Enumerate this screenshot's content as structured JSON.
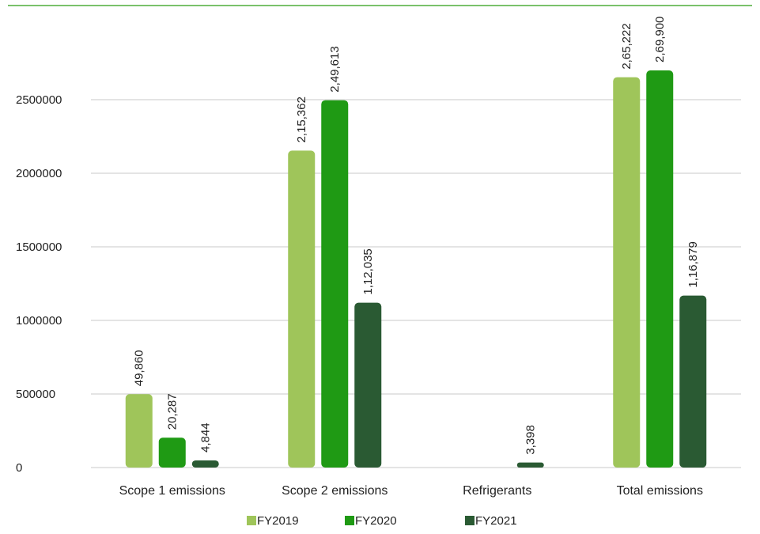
{
  "chart_data": {
    "type": "bar",
    "title": "",
    "xlabel": "",
    "ylabel": "",
    "ylim": [
      0,
      2500000
    ],
    "yticks": [
      "0",
      "500000",
      "1000000",
      "1500000",
      "2000000",
      "2500000"
    ],
    "ytick_values": [
      0,
      500000,
      1000000,
      1500000,
      2000000,
      2500000
    ],
    "grid": true,
    "legend_position": "bottom",
    "categories": [
      "Scope 1 emissions",
      "Scope 2 emissions",
      "Refrigerants",
      "Total emissions"
    ],
    "series": [
      {
        "name": "FY2019",
        "color": "#9fc55a",
        "values": [
          498600,
          2153620,
          0,
          2652220
        ],
        "labels": [
          "49,860",
          "2,15,362",
          "",
          "2,65,222"
        ]
      },
      {
        "name": "FY2020",
        "color": "#1f9a14",
        "values": [
          202870,
          2496130,
          0,
          2699000
        ],
        "labels": [
          "20,287",
          "2,49,613",
          "",
          "2,69,900"
        ]
      },
      {
        "name": "FY2021",
        "color": "#2a5a33",
        "values": [
          48440,
          1120350,
          33980,
          1168790
        ],
        "labels": [
          "4,844",
          "1,12,035",
          "3,398",
          "1,16,879"
        ]
      }
    ],
    "top_rule_color": "#4fae3a",
    "grid_color": "#c8c8c8"
  }
}
